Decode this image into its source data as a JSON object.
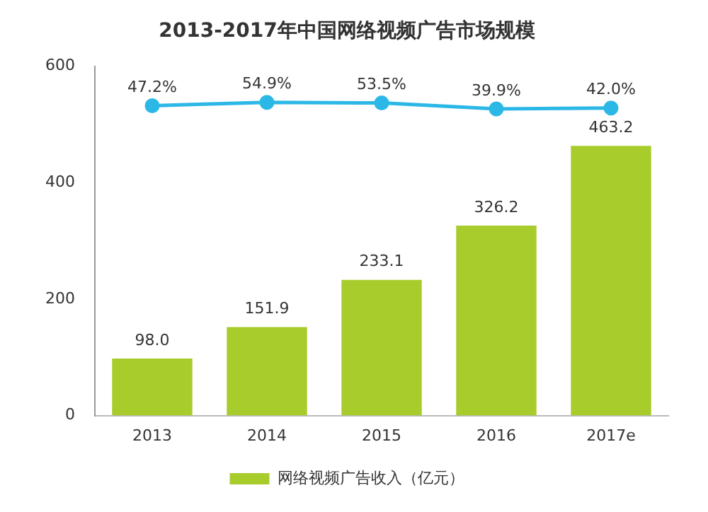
{
  "chart_data": {
    "type": "bar",
    "title": "2013-2017年中国网络视频广告市场规模",
    "categories": [
      "2013",
      "2014",
      "2015",
      "2016",
      "2017e"
    ],
    "ylim": [
      0,
      600
    ],
    "yticks": [
      0,
      200,
      400,
      600
    ],
    "grid": false,
    "legend": "bottom",
    "series": [
      {
        "name": "网络视频广告收入（亿元）",
        "color": "#a8cc2c",
        "values": [
          98.0,
          151.9,
          233.1,
          326.2,
          463.2
        ],
        "value_labels": [
          "98.0",
          "151.9",
          "233.1",
          "326.2",
          "463.2"
        ]
      },
      {
        "type": "line",
        "axis": "y2",
        "color": "#2cb8e6",
        "marker": "circle",
        "values": [
          47.2,
          54.9,
          53.5,
          39.9,
          42.0
        ],
        "value_labels": [
          "47.2%",
          "54.9%",
          "53.5%",
          "39.9%",
          "42.0%"
        ]
      }
    ]
  }
}
